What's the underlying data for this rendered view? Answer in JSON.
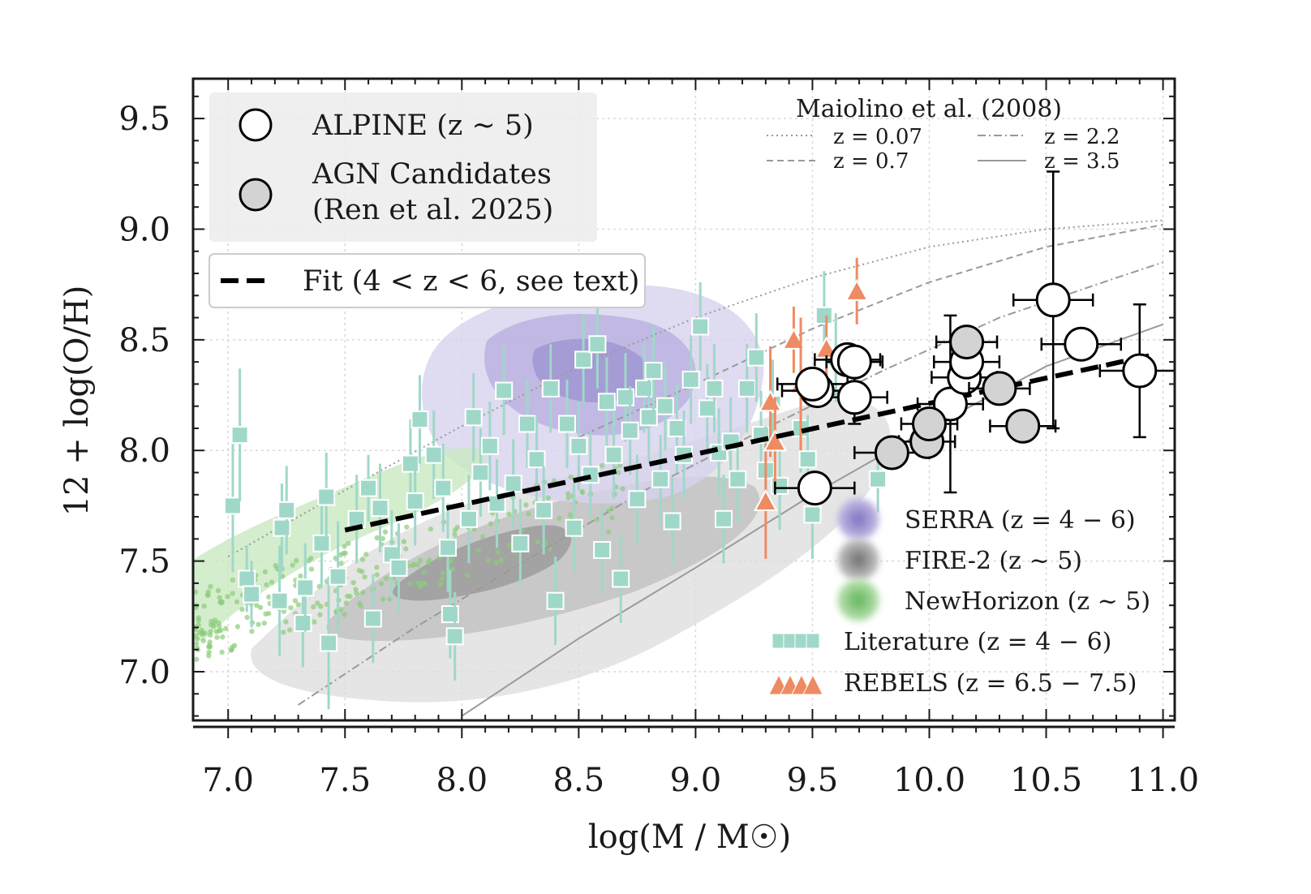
{
  "chart_data": {
    "type": "scatter",
    "xlabel": "log(M / M☉)",
    "ylabel": "12 + log(O/H)",
    "xlim": [
      6.85,
      11.05
    ],
    "ylim": [
      6.78,
      9.68
    ],
    "xticks": [
      "7.0",
      "7.5",
      "8.0",
      "8.5",
      "9.0",
      "9.5",
      "10.0",
      "10.5",
      "11.0"
    ],
    "yticks": [
      "7.0",
      "7.5",
      "8.0",
      "8.5",
      "9.0",
      "9.5"
    ],
    "grid": true,
    "colors": {
      "alpine_fill": "#ffffff",
      "agn_fill": "#d3d3d3",
      "literature": "#9fd8c9",
      "rebels": "#ee8b62",
      "serra": "#9a8fcf",
      "fire": "#8c8c8c",
      "newhorizon": "#8ccc7a",
      "fit": "#000000"
    },
    "legend_main": {
      "alpine": "ALPINE (z ~ 5)",
      "agn_line1": "AGN Candidates",
      "agn_line2": "(Ren et al. 2025)",
      "fit": "Fit (4 < z < 6, see text)"
    },
    "legend_maiolino": {
      "title": "Maiolino et al. (2008)",
      "z007": "z = 0.07",
      "z07": "z = 0.7",
      "z22": "z = 2.2",
      "z35": "z = 3.5"
    },
    "legend_sims": {
      "serra": "SERRA (z = 4 − 6)",
      "fire": "FIRE-2 (z ~ 5)",
      "newhorizon": "NewHorizon (z ~ 5)",
      "literature": "Literature (z = 4 − 6)",
      "rebels": "REBELS (z = 6.5 − 7.5)"
    },
    "series": [
      {
        "name": "ALPINE (z ~ 5)",
        "points": [
          {
            "x": 9.51,
            "y": 7.83,
            "xerr": 0.17,
            "yerr": 0.0
          },
          {
            "x": 9.52,
            "y": 8.27,
            "xerr": 0.15,
            "yerr": 0.0
          },
          {
            "x": 9.5,
            "y": 8.3,
            "xerr": 0.15,
            "yerr": 0.0
          },
          {
            "x": 9.65,
            "y": 8.41,
            "xerr": 0.14,
            "yerr": 0.0
          },
          {
            "x": 9.68,
            "y": 8.4,
            "xerr": 0.12,
            "yerr": 0.0
          },
          {
            "x": 9.68,
            "y": 8.24,
            "xerr": 0.14,
            "yerr": 0.12
          },
          {
            "x": 10.09,
            "y": 8.21,
            "xerr": 0.14,
            "yerr": 0.4
          },
          {
            "x": 10.15,
            "y": 8.33,
            "xerr": 0.14,
            "yerr": 0.0
          },
          {
            "x": 10.16,
            "y": 8.4,
            "xerr": 0.14,
            "yerr": 0.0
          },
          {
            "x": 10.53,
            "y": 8.68,
            "xerr": 0.17,
            "yerr": 0.58
          },
          {
            "x": 10.65,
            "y": 8.48,
            "xerr": 0.17,
            "yerr": 0.0
          },
          {
            "x": 10.9,
            "y": 8.36,
            "xerr": 0.17,
            "yerr": 0.3
          }
        ]
      },
      {
        "name": "AGN Candidates (Ren et al. 2025)",
        "points": [
          {
            "x": 9.84,
            "y": 7.99,
            "xerr": 0.16,
            "yerr": 0.0
          },
          {
            "x": 9.99,
            "y": 8.04,
            "xerr": 0.12,
            "yerr": 0.0
          },
          {
            "x": 10.0,
            "y": 8.12,
            "xerr": 0.12,
            "yerr": 0.0
          },
          {
            "x": 10.16,
            "y": 8.49,
            "xerr": 0.13,
            "yerr": 0.0
          },
          {
            "x": 10.3,
            "y": 8.28,
            "xerr": 0.13,
            "yerr": 0.0
          },
          {
            "x": 10.4,
            "y": 8.11,
            "xerr": 0.14,
            "yerr": 0.0
          }
        ]
      },
      {
        "name": "REBELS (z = 6.5 − 7.5)",
        "points": [
          {
            "x": 9.3,
            "y": 7.77,
            "yerr": 0.26
          },
          {
            "x": 9.32,
            "y": 8.22,
            "yerr": 0.25
          },
          {
            "x": 9.34,
            "y": 8.04,
            "yerr": 0.2
          },
          {
            "x": 9.42,
            "y": 8.5,
            "yerr": 0.15
          },
          {
            "x": 9.45,
            "y": 8.3,
            "yerr": 0.3
          },
          {
            "x": 9.56,
            "y": 8.46,
            "yerr": 0.15
          },
          {
            "x": 9.69,
            "y": 8.72,
            "yerr": 0.15
          }
        ]
      },
      {
        "name": "Literature (z = 4 − 6)",
        "points": [
          {
            "x": 7.02,
            "y": 7.75,
            "yerr": 0.3
          },
          {
            "x": 7.05,
            "y": 8.07,
            "yerr": 0.3
          },
          {
            "x": 7.08,
            "y": 7.42,
            "yerr": 0.15
          },
          {
            "x": 7.1,
            "y": 7.35,
            "yerr": 0.15
          },
          {
            "x": 7.22,
            "y": 7.32,
            "yerr": 0.25
          },
          {
            "x": 7.23,
            "y": 7.65,
            "yerr": 0.2
          },
          {
            "x": 7.25,
            "y": 7.73,
            "yerr": 0.2
          },
          {
            "x": 7.32,
            "y": 7.22,
            "yerr": 0.2
          },
          {
            "x": 7.33,
            "y": 7.38,
            "yerr": 0.2
          },
          {
            "x": 7.4,
            "y": 7.58,
            "yerr": 0.2
          },
          {
            "x": 7.42,
            "y": 7.79,
            "yerr": 0.2
          },
          {
            "x": 7.43,
            "y": 7.13,
            "yerr": 0.3
          },
          {
            "x": 7.47,
            "y": 7.43,
            "yerr": 0.25
          },
          {
            "x": 7.55,
            "y": 7.69,
            "yerr": 0.2
          },
          {
            "x": 7.6,
            "y": 7.83,
            "yerr": 0.15
          },
          {
            "x": 7.62,
            "y": 7.24,
            "yerr": 0.2
          },
          {
            "x": 7.65,
            "y": 7.74,
            "yerr": 0.2
          },
          {
            "x": 7.7,
            "y": 7.53,
            "yerr": 0.2
          },
          {
            "x": 7.73,
            "y": 7.47,
            "yerr": 0.2
          },
          {
            "x": 7.78,
            "y": 7.94,
            "yerr": 0.2
          },
          {
            "x": 7.8,
            "y": 7.77,
            "yerr": 0.2
          },
          {
            "x": 7.82,
            "y": 8.14,
            "yerr": 0.2
          },
          {
            "x": 7.88,
            "y": 7.98,
            "yerr": 0.2
          },
          {
            "x": 7.92,
            "y": 7.83,
            "yerr": 0.2
          },
          {
            "x": 7.94,
            "y": 7.56,
            "yerr": 0.2
          },
          {
            "x": 7.95,
            "y": 7.26,
            "yerr": 0.2
          },
          {
            "x": 7.97,
            "y": 7.16,
            "yerr": 0.2
          },
          {
            "x": 8.03,
            "y": 7.69,
            "yerr": 0.2
          },
          {
            "x": 8.05,
            "y": 8.15,
            "yerr": 0.2
          },
          {
            "x": 8.08,
            "y": 7.9,
            "yerr": 0.2
          },
          {
            "x": 8.12,
            "y": 8.02,
            "yerr": 0.2
          },
          {
            "x": 8.15,
            "y": 7.76,
            "yerr": 0.2
          },
          {
            "x": 8.18,
            "y": 8.27,
            "yerr": 0.2
          },
          {
            "x": 8.22,
            "y": 7.85,
            "yerr": 0.2
          },
          {
            "x": 8.25,
            "y": 7.58,
            "yerr": 0.2
          },
          {
            "x": 8.28,
            "y": 8.12,
            "yerr": 0.2
          },
          {
            "x": 8.32,
            "y": 7.96,
            "yerr": 0.2
          },
          {
            "x": 8.35,
            "y": 7.73,
            "yerr": 0.2
          },
          {
            "x": 8.38,
            "y": 8.28,
            "yerr": 0.2
          },
          {
            "x": 8.4,
            "y": 7.32,
            "yerr": 0.2
          },
          {
            "x": 8.45,
            "y": 8.12,
            "yerr": 0.2
          },
          {
            "x": 8.48,
            "y": 7.65,
            "yerr": 0.2
          },
          {
            "x": 8.5,
            "y": 8.02,
            "yerr": 0.2
          },
          {
            "x": 8.52,
            "y": 8.41,
            "yerr": 0.2
          },
          {
            "x": 8.55,
            "y": 7.89,
            "yerr": 0.2
          },
          {
            "x": 8.58,
            "y": 8.48,
            "yerr": 0.2
          },
          {
            "x": 8.6,
            "y": 7.55,
            "yerr": 0.2
          },
          {
            "x": 8.62,
            "y": 8.22,
            "yerr": 0.2
          },
          {
            "x": 8.65,
            "y": 7.98,
            "yerr": 0.2
          },
          {
            "x": 8.68,
            "y": 7.42,
            "yerr": 0.2
          },
          {
            "x": 8.7,
            "y": 8.24,
            "yerr": 0.2
          },
          {
            "x": 8.72,
            "y": 8.09,
            "yerr": 0.2
          },
          {
            "x": 8.75,
            "y": 7.78,
            "yerr": 0.2
          },
          {
            "x": 8.78,
            "y": 8.28,
            "yerr": 0.2
          },
          {
            "x": 8.8,
            "y": 8.15,
            "yerr": 0.2
          },
          {
            "x": 8.82,
            "y": 8.36,
            "yerr": 0.2
          },
          {
            "x": 8.85,
            "y": 7.87,
            "yerr": 0.2
          },
          {
            "x": 8.87,
            "y": 8.2,
            "yerr": 0.2
          },
          {
            "x": 8.9,
            "y": 7.68,
            "yerr": 0.2
          },
          {
            "x": 8.92,
            "y": 8.1,
            "yerr": 0.2
          },
          {
            "x": 8.95,
            "y": 7.98,
            "yerr": 0.2
          },
          {
            "x": 8.98,
            "y": 8.32,
            "yerr": 0.2
          },
          {
            "x": 9.02,
            "y": 8.56,
            "yerr": 0.2
          },
          {
            "x": 9.05,
            "y": 8.19,
            "yerr": 0.2
          },
          {
            "x": 9.08,
            "y": 8.28,
            "yerr": 0.2
          },
          {
            "x": 9.1,
            "y": 7.99,
            "yerr": 0.2
          },
          {
            "x": 9.12,
            "y": 7.69,
            "yerr": 0.2
          },
          {
            "x": 9.15,
            "y": 8.04,
            "yerr": 0.2
          },
          {
            "x": 9.18,
            "y": 7.87,
            "yerr": 0.2
          },
          {
            "x": 9.22,
            "y": 8.28,
            "yerr": 0.2
          },
          {
            "x": 9.26,
            "y": 8.42,
            "yerr": 0.2
          },
          {
            "x": 9.28,
            "y": 8.07,
            "yerr": 0.2
          },
          {
            "x": 9.3,
            "y": 7.91,
            "yerr": 0.2
          },
          {
            "x": 9.33,
            "y": 8.21,
            "yerr": 0.2
          },
          {
            "x": 9.36,
            "y": 7.84,
            "yerr": 0.2
          },
          {
            "x": 9.45,
            "y": 8.1,
            "yerr": 0.2
          },
          {
            "x": 9.48,
            "y": 7.96,
            "yerr": 0.2
          },
          {
            "x": 9.5,
            "y": 7.71,
            "yerr": 0.2
          },
          {
            "x": 9.55,
            "y": 8.61,
            "yerr": 0.2
          },
          {
            "x": 9.6,
            "y": 8.42,
            "yerr": 0.2
          },
          {
            "x": 9.78,
            "y": 7.87,
            "yerr": 0.15
          }
        ]
      }
    ],
    "fit_line": {
      "x": [
        7.5,
        10.95
      ],
      "y": [
        7.64,
        8.43
      ]
    },
    "maiolino_curves": [
      {
        "name": "z = 0.07",
        "x": [
          7.0,
          7.5,
          8.0,
          8.5,
          9.0,
          9.5,
          10.0,
          10.5,
          11.0
        ],
        "y": [
          7.52,
          7.82,
          8.11,
          8.38,
          8.6,
          8.78,
          8.92,
          9.0,
          9.04
        ]
      },
      {
        "name": "z = 0.7",
        "x": [
          8.5,
          9.0,
          9.5,
          10.0,
          10.5,
          11.0
        ],
        "y": [
          8.06,
          8.3,
          8.55,
          8.76,
          8.92,
          9.02
        ]
      },
      {
        "name": "z = 2.2",
        "x": [
          7.3,
          7.8,
          8.3,
          8.8,
          9.3,
          9.8,
          10.3,
          10.8,
          11.0
        ],
        "y": [
          6.85,
          7.2,
          7.52,
          7.83,
          8.1,
          8.36,
          8.6,
          8.78,
          8.85
        ]
      },
      {
        "name": "z = 3.5",
        "x": [
          8.0,
          8.5,
          9.0,
          9.5,
          10.0,
          10.5,
          11.0
        ],
        "y": [
          6.8,
          7.15,
          7.47,
          7.8,
          8.1,
          8.38,
          8.57
        ]
      }
    ]
  }
}
